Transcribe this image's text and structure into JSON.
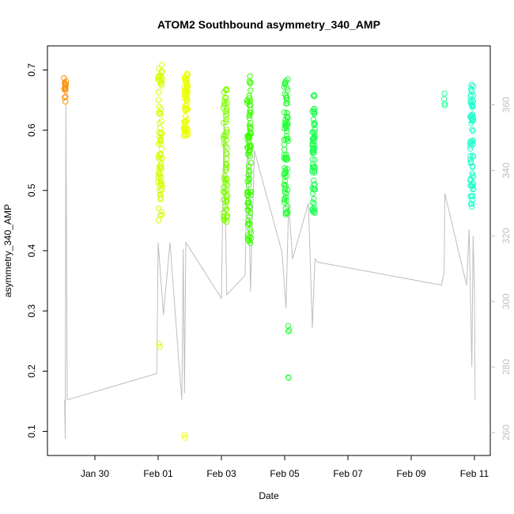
{
  "chart_data": {
    "type": "scatter",
    "title": "ATOM2 Southbound asymmetry_340_AMP",
    "xlabel": "Date",
    "ylabel": "asymmetry_340_AMP",
    "xlim": [
      "2024-01-28T12:00",
      "2024-02-11T12:00"
    ],
    "ylim": [
      0.06,
      0.74
    ],
    "y2lim": [
      253,
      378
    ],
    "x_ticks": [
      {
        "date": "2024-01-30T00:00",
        "label": "Jan 30"
      },
      {
        "date": "2024-02-01T00:00",
        "label": "Feb 01"
      },
      {
        "date": "2024-02-03T00:00",
        "label": "Feb 03"
      },
      {
        "date": "2024-02-05T00:00",
        "label": "Feb 05"
      },
      {
        "date": "2024-02-07T00:00",
        "label": "Feb 07"
      },
      {
        "date": "2024-02-09T00:00",
        "label": "Feb 09"
      },
      {
        "date": "2024-02-11T00:00",
        "label": "Feb 11"
      }
    ],
    "y_ticks": [
      "0.1",
      "0.2",
      "0.3",
      "0.4",
      "0.5",
      "0.6",
      "0.7"
    ],
    "y2_ticks": [
      "260",
      "280",
      "300",
      "320",
      "340",
      "360"
    ],
    "grid": false,
    "series": [
      {
        "marker": "open-circle",
        "colors_by_cluster": [
          "#ff8c00",
          "#d4ff00",
          "#eaff00",
          "#7fff00",
          "#3aff00",
          "#22ff33",
          "#22ff55",
          "#22ff99",
          "#22ffcc"
        ],
        "clusters": [
          {
            "center": "2024-01-29T01:20",
            "spread_hours": 1.5,
            "color": "#ff8c00",
            "count": 14,
            "y_min": 0.645,
            "y_max": 0.69
          },
          {
            "center": "2024-02-01T01:30",
            "spread_hours": 3.0,
            "color": "#d4ff00",
            "count": 80,
            "y_min": 0.45,
            "y_max": 0.71
          },
          {
            "center": "2024-02-01T01:00",
            "spread_hours": 1.0,
            "color": "#d4ff00",
            "count": 2,
            "y_min": 0.24,
            "y_max": 0.25
          },
          {
            "center": "2024-02-01T21:00",
            "spread_hours": 3.0,
            "color": "#eaff00",
            "count": 70,
            "y_min": 0.59,
            "y_max": 0.695
          },
          {
            "center": "2024-02-01T20:00",
            "spread_hours": 1.0,
            "color": "#eaff00",
            "count": 2,
            "y_min": 0.088,
            "y_max": 0.097
          },
          {
            "center": "2024-02-03T03:00",
            "spread_hours": 3.0,
            "color": "#7fff00",
            "count": 70,
            "y_min": 0.445,
            "y_max": 0.675
          },
          {
            "center": "2024-02-03T21:00",
            "spread_hours": 3.0,
            "color": "#3aff00",
            "count": 90,
            "y_min": 0.41,
            "y_max": 0.695
          },
          {
            "center": "2024-02-05T01:00",
            "spread_hours": 3.0,
            "color": "#22ff33",
            "count": 80,
            "y_min": 0.46,
            "y_max": 0.685
          },
          {
            "center": "2024-02-05T03:00",
            "spread_hours": 1.0,
            "color": "#22ff33",
            "count": 3,
            "y_min": 0.265,
            "y_max": 0.285
          },
          {
            "center": "2024-02-05T03:00",
            "spread_hours": 0.5,
            "color": "#22ff33",
            "count": 2,
            "y_min": 0.187,
            "y_max": 0.19
          },
          {
            "center": "2024-02-05T22:00",
            "spread_hours": 2.0,
            "color": "#22ff55",
            "count": 70,
            "y_min": 0.46,
            "y_max": 0.665
          },
          {
            "center": "2024-02-10T01:00",
            "spread_hours": 1.0,
            "color": "#22ff99",
            "count": 4,
            "y_min": 0.64,
            "y_max": 0.672
          },
          {
            "center": "2024-02-10T22:00",
            "spread_hours": 2.5,
            "color": "#22ffcc",
            "count": 70,
            "y_min": 0.47,
            "y_max": 0.678
          }
        ]
      },
      {
        "marker": "line",
        "axis": "right",
        "color": "#bebebe",
        "points": [
          [
            "2024-01-29T01:00",
            270
          ],
          [
            "2024-01-29T01:30",
            258
          ],
          [
            "2024-01-29T02:00",
            360
          ],
          [
            "2024-01-29T03:00",
            270
          ],
          [
            "2024-01-31T23:00",
            278
          ],
          [
            "2024-02-01T00:00",
            318
          ],
          [
            "2024-02-01T04:00",
            296
          ],
          [
            "2024-02-01T09:00",
            318
          ],
          [
            "2024-02-01T16:00",
            280
          ],
          [
            "2024-02-01T18:00",
            270
          ],
          [
            "2024-02-01T19:00",
            316
          ],
          [
            "2024-02-01T20:00",
            272
          ],
          [
            "2024-02-01T21:00",
            318
          ],
          [
            "2024-02-03T00:00",
            301
          ],
          [
            "2024-02-03T02:00",
            356
          ],
          [
            "2024-02-03T04:00",
            302
          ],
          [
            "2024-02-03T18:00",
            308
          ],
          [
            "2024-02-03T20:00",
            355
          ],
          [
            "2024-02-03T22:00",
            303
          ],
          [
            "2024-02-04T01:00",
            346
          ],
          [
            "2024-02-04T22:00",
            315
          ],
          [
            "2024-02-05T01:00",
            298
          ],
          [
            "2024-02-05T03:00",
            330
          ],
          [
            "2024-02-05T06:00",
            313
          ],
          [
            "2024-02-05T18:00",
            330
          ],
          [
            "2024-02-05T21:00",
            292
          ],
          [
            "2024-02-05T23:00",
            313
          ],
          [
            "2024-02-06T01:00",
            312
          ],
          [
            "2024-02-09T23:00",
            305
          ],
          [
            "2024-02-10T01:00",
            309
          ],
          [
            "2024-02-10T01:30",
            333
          ],
          [
            "2024-02-10T18:00",
            305
          ],
          [
            "2024-02-10T20:00",
            322
          ],
          [
            "2024-02-10T22:00",
            280
          ],
          [
            "2024-02-10T23:00",
            320
          ],
          [
            "2024-02-11T00:00",
            303
          ],
          [
            "2024-02-11T00:30",
            270
          ]
        ]
      }
    ]
  }
}
